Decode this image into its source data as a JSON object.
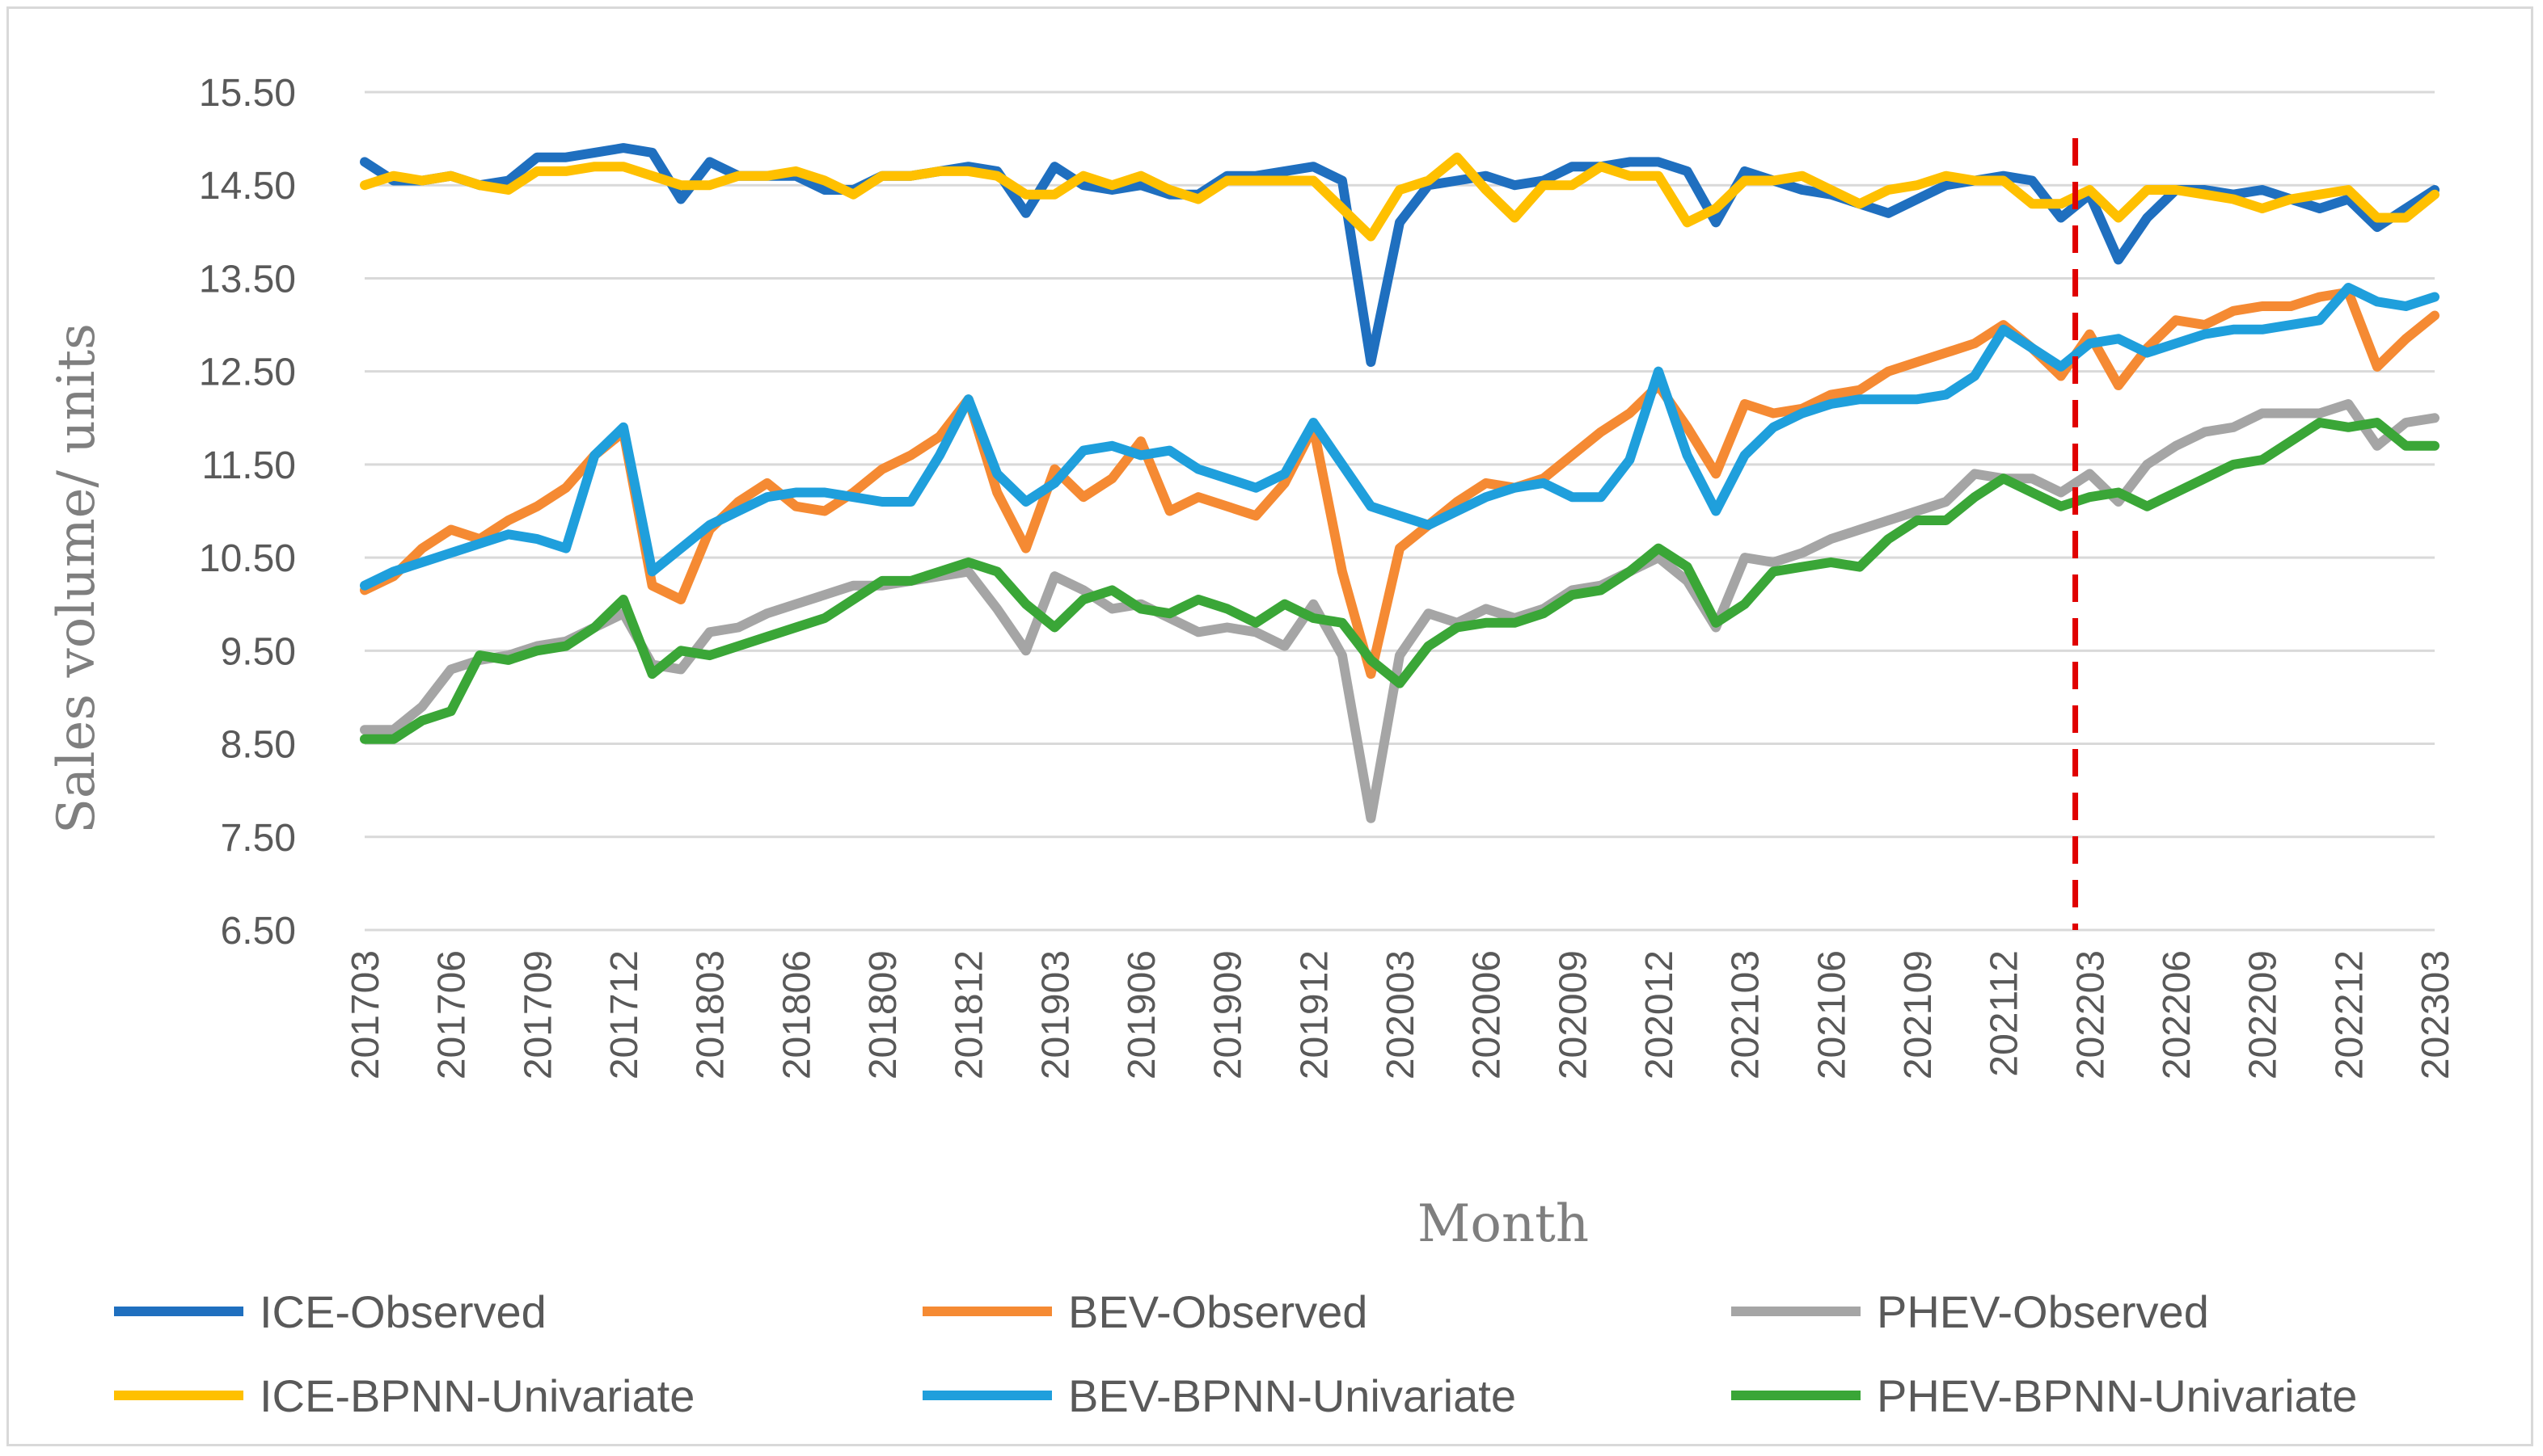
{
  "chart_data": {
    "type": "line",
    "title": "",
    "xlabel": "Month",
    "ylabel": "Sales volume/ units",
    "ylim": [
      6.5,
      15.5
    ],
    "yticks": [
      "6.50",
      "7.50",
      "8.50",
      "9.50",
      "10.50",
      "11.50",
      "12.50",
      "13.50",
      "14.50",
      "15.50"
    ],
    "x_tick_labels": [
      "201703",
      "201706",
      "201709",
      "201712",
      "201803",
      "201806",
      "201809",
      "201812",
      "201903",
      "201906",
      "201909",
      "201912",
      "202003",
      "202006",
      "202009",
      "202012",
      "202103",
      "202106",
      "202109",
      "202112",
      "202203",
      "202206",
      "202209",
      "202212",
      "202303"
    ],
    "forecast_start_label": "202203",
    "forecast_line_color": "#e00000",
    "grid": "horizontal",
    "legend_position": "bottom",
    "categories": [
      "201703",
      "201704",
      "201705",
      "201706",
      "201707",
      "201708",
      "201709",
      "201710",
      "201711",
      "201712",
      "201801",
      "201802",
      "201803",
      "201804",
      "201805",
      "201806",
      "201807",
      "201808",
      "201809",
      "201810",
      "201811",
      "201812",
      "201901",
      "201902",
      "201903",
      "201904",
      "201905",
      "201906",
      "201907",
      "201908",
      "201909",
      "201910",
      "201911",
      "201912",
      "202001",
      "202002",
      "202003",
      "202004",
      "202005",
      "202006",
      "202007",
      "202008",
      "202009",
      "202010",
      "202011",
      "202012",
      "202101",
      "202102",
      "202103",
      "202104",
      "202105",
      "202106",
      "202107",
      "202108",
      "202109",
      "202110",
      "202111",
      "202112",
      "202201",
      "202202",
      "202203",
      "202204",
      "202205",
      "202206",
      "202207",
      "202208",
      "202209",
      "202210",
      "202211",
      "202212",
      "202301",
      "202302",
      "202303"
    ],
    "series": [
      {
        "name": "ICE-Observed",
        "color": "#1f6fbf",
        "values": [
          14.75,
          14.55,
          14.55,
          14.6,
          14.5,
          14.55,
          14.8,
          14.8,
          14.85,
          14.9,
          14.85,
          14.35,
          14.75,
          14.6,
          14.6,
          14.6,
          14.45,
          14.45,
          14.6,
          14.6,
          14.65,
          14.7,
          14.65,
          14.2,
          14.7,
          14.5,
          14.45,
          14.5,
          14.4,
          14.4,
          14.6,
          14.6,
          14.65,
          14.7,
          14.55,
          12.6,
          14.1,
          14.5,
          14.55,
          14.6,
          14.5,
          14.55,
          14.7,
          14.7,
          14.75,
          14.75,
          14.65,
          14.1,
          14.65,
          14.55,
          14.45,
          14.4,
          14.3,
          14.2,
          14.35,
          14.5,
          14.55,
          14.6,
          14.55,
          14.15,
          14.4,
          13.7,
          14.15,
          14.45,
          14.45,
          14.4,
          14.45,
          14.35,
          14.25,
          14.35,
          14.05,
          14.25,
          14.45
        ]
      },
      {
        "name": "BEV-Observed",
        "color": "#f58a33",
        "values": [
          10.15,
          10.3,
          10.6,
          10.8,
          10.7,
          10.9,
          11.05,
          11.25,
          11.6,
          11.85,
          10.2,
          10.05,
          10.8,
          11.1,
          11.3,
          11.05,
          11.0,
          11.2,
          11.45,
          11.6,
          11.8,
          12.2,
          11.2,
          10.6,
          11.45,
          11.15,
          11.35,
          11.75,
          11.0,
          11.15,
          11.05,
          10.95,
          11.3,
          11.9,
          10.35,
          9.25,
          10.6,
          10.85,
          11.1,
          11.3,
          11.25,
          11.35,
          11.6,
          11.85,
          12.05,
          12.35,
          11.9,
          11.4,
          12.15,
          12.05,
          12.1,
          12.25,
          12.3,
          12.5,
          12.6,
          12.7,
          12.8,
          13.0,
          12.75,
          12.45,
          12.9,
          12.35,
          12.75,
          13.05,
          13.0,
          13.15,
          13.2,
          13.2,
          13.3,
          13.35,
          12.55,
          12.85,
          13.1
        ]
      },
      {
        "name": "PHEV-Observed",
        "color": "#a5a5a5",
        "values": [
          8.65,
          8.65,
          8.9,
          9.3,
          9.4,
          9.45,
          9.55,
          9.6,
          9.75,
          9.9,
          9.35,
          9.3,
          9.7,
          9.75,
          9.9,
          10.0,
          10.1,
          10.2,
          10.2,
          10.25,
          10.3,
          10.35,
          9.95,
          9.5,
          10.3,
          10.15,
          9.95,
          10.0,
          9.85,
          9.7,
          9.75,
          9.7,
          9.55,
          10.0,
          9.45,
          7.7,
          9.45,
          9.9,
          9.8,
          9.95,
          9.85,
          9.95,
          10.15,
          10.2,
          10.35,
          10.5,
          10.25,
          9.75,
          10.5,
          10.45,
          10.55,
          10.7,
          10.8,
          10.9,
          11.0,
          11.1,
          11.4,
          11.35,
          11.35,
          11.2,
          11.4,
          11.1,
          11.5,
          11.7,
          11.85,
          11.9,
          12.05,
          12.05,
          12.05,
          12.15,
          11.7,
          11.95,
          12.0
        ]
      },
      {
        "name": "ICE-BPNN-Univariate",
        "color": "#ffc000",
        "values": [
          14.5,
          14.6,
          14.55,
          14.6,
          14.5,
          14.45,
          14.65,
          14.65,
          14.7,
          14.7,
          14.6,
          14.5,
          14.5,
          14.6,
          14.6,
          14.65,
          14.55,
          14.4,
          14.6,
          14.6,
          14.65,
          14.65,
          14.6,
          14.4,
          14.4,
          14.6,
          14.5,
          14.6,
          14.45,
          14.35,
          14.55,
          14.55,
          14.55,
          14.55,
          14.25,
          13.95,
          14.45,
          14.55,
          14.8,
          14.45,
          14.15,
          14.5,
          14.5,
          14.7,
          14.6,
          14.6,
          14.1,
          14.25,
          14.55,
          14.55,
          14.6,
          14.45,
          14.3,
          14.45,
          14.5,
          14.6,
          14.55,
          14.55,
          14.3,
          14.3,
          14.45,
          14.15,
          14.45,
          14.45,
          14.4,
          14.35,
          14.25,
          14.35,
          14.4,
          14.45,
          14.15,
          14.15,
          14.4
        ]
      },
      {
        "name": "BEV-BPNN-Univariate",
        "color": "#1f9fdc",
        "values": [
          10.2,
          10.35,
          10.45,
          10.55,
          10.65,
          10.75,
          10.7,
          10.6,
          11.6,
          11.9,
          10.35,
          10.6,
          10.85,
          11.0,
          11.15,
          11.2,
          11.2,
          11.15,
          11.1,
          11.1,
          11.6,
          12.2,
          11.4,
          11.1,
          11.3,
          11.65,
          11.7,
          11.6,
          11.65,
          11.45,
          11.35,
          11.25,
          11.4,
          11.95,
          11.5,
          11.05,
          10.95,
          10.85,
          11.0,
          11.15,
          11.25,
          11.3,
          11.15,
          11.15,
          11.55,
          12.5,
          11.6,
          11.0,
          11.6,
          11.9,
          12.05,
          12.15,
          12.2,
          12.2,
          12.2,
          12.25,
          12.45,
          12.95,
          12.75,
          12.55,
          12.8,
          12.85,
          12.7,
          12.8,
          12.9,
          12.95,
          12.95,
          13.0,
          13.05,
          13.4,
          13.25,
          13.2,
          13.3
        ]
      },
      {
        "name": "PHEV-BPNN-Univariate",
        "color": "#3aa637",
        "values": [
          8.55,
          8.55,
          8.75,
          8.85,
          9.45,
          9.4,
          9.5,
          9.55,
          9.75,
          10.05,
          9.25,
          9.5,
          9.45,
          9.55,
          9.65,
          9.75,
          9.85,
          10.05,
          10.25,
          10.25,
          10.35,
          10.45,
          10.35,
          10.0,
          9.75,
          10.05,
          10.15,
          9.95,
          9.9,
          10.05,
          9.95,
          9.8,
          10.0,
          9.85,
          9.8,
          9.4,
          9.15,
          9.55,
          9.75,
          9.8,
          9.8,
          9.9,
          10.1,
          10.15,
          10.35,
          10.6,
          10.4,
          9.8,
          10.0,
          10.35,
          10.4,
          10.45,
          10.4,
          10.7,
          10.9,
          10.9,
          11.15,
          11.35,
          11.2,
          11.05,
          11.15,
          11.2,
          11.05,
          11.2,
          11.35,
          11.5,
          11.55,
          11.75,
          11.95,
          11.9,
          11.95,
          11.7,
          11.7
        ]
      }
    ]
  }
}
